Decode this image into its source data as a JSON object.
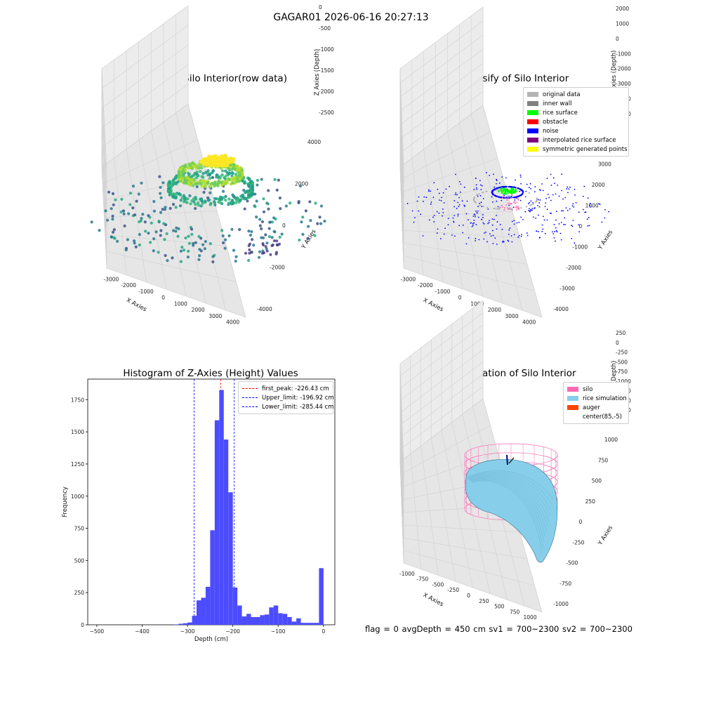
{
  "suptitle": "GAGAR01 2026-06-16 20:27:13",
  "footer": "flag = 0     avgDepth = 450 cm  sv1 = 700~2300  sv2 = 700~2300",
  "chart_data": [
    {
      "type": "scatter",
      "title": "3D Plot of Silo Interior(row data)",
      "xlabel": "X Axies",
      "ylabel": "Y Axies",
      "zlabel": "Z Axies (Depth)",
      "xticks": [
        "-3000",
        "-2000",
        "-1000",
        "0",
        "1000",
        "2000",
        "3000",
        "4000"
      ],
      "yticks": [
        "4000",
        "2000",
        "0",
        "-2000",
        "-4000"
      ],
      "zticks": [
        "0",
        "-500",
        "-1000",
        "-1500",
        "-2000",
        "-2500"
      ],
      "colormap": "viridis",
      "clusters": [
        {
          "desc": "top surface",
          "z_range": [
            -400,
            -100
          ],
          "color": "#fde725"
        },
        {
          "desc": "upper ring",
          "z_range": [
            -1200,
            -600
          ],
          "color": "#7ad151"
        },
        {
          "desc": "mid ring",
          "z_range": [
            -1600,
            -1000
          ],
          "color": "#22a884"
        },
        {
          "desc": "floor scatter",
          "z_range": [
            -2500,
            -1800
          ],
          "color": "#2a788e"
        }
      ]
    },
    {
      "type": "scatter",
      "title": "3D classify of Silo Interior",
      "xlabel": "X Axies",
      "ylabel": "Y Axies",
      "zlabel": "Z Axies (Depth)",
      "xticks": [
        "-3000",
        "-2000",
        "-1000",
        "0",
        "1000",
        "2000",
        "3000",
        "4000"
      ],
      "yticks": [
        "4000",
        "3000",
        "2000",
        "1000",
        "0",
        "-1000",
        "-2000",
        "-3000",
        "-4000"
      ],
      "zticks": [
        "2000",
        "1000",
        "0",
        "-1000",
        "-2000",
        "-3000",
        "-4000",
        "-5000"
      ],
      "zticks_partial": "000",
      "legend": [
        {
          "label": "original data",
          "color": "#b3b3b3"
        },
        {
          "label": "inner wall",
          "color": "#808080"
        },
        {
          "label": "rice surface",
          "color": "#00ff00"
        },
        {
          "label": "obstacle",
          "color": "#ff0000"
        },
        {
          "label": "noise",
          "color": "#0000ff"
        },
        {
          "label": "interpolated rice surface",
          "color": "#800080"
        },
        {
          "label": "symmetric generated points",
          "color": "#ffff00"
        }
      ]
    },
    {
      "type": "bar",
      "title": "Histogram of Z-Axies (Height) Values",
      "xlabel": "Depth (cm)",
      "ylabel": "Frequency",
      "xlim": [
        -520,
        25
      ],
      "ylim": [
        0,
        1910
      ],
      "xticks": [
        -500,
        -400,
        -300,
        -200,
        -100,
        0
      ],
      "yticks": [
        0,
        250,
        500,
        750,
        1000,
        1250,
        1500,
        1750
      ],
      "bin_width": 10,
      "bins": [
        {
          "x": -325,
          "y": 3
        },
        {
          "x": -315,
          "y": 8
        },
        {
          "x": -305,
          "y": 12
        },
        {
          "x": -295,
          "y": 18
        },
        {
          "x": -285,
          "y": 70
        },
        {
          "x": -275,
          "y": 190
        },
        {
          "x": -265,
          "y": 210
        },
        {
          "x": -255,
          "y": 295
        },
        {
          "x": -245,
          "y": 735
        },
        {
          "x": -235,
          "y": 1590
        },
        {
          "x": -225,
          "y": 1825
        },
        {
          "x": -215,
          "y": 1440
        },
        {
          "x": -205,
          "y": 1030
        },
        {
          "x": -195,
          "y": 290
        },
        {
          "x": -185,
          "y": 150
        },
        {
          "x": -175,
          "y": 65
        },
        {
          "x": -165,
          "y": 85
        },
        {
          "x": -155,
          "y": 60
        },
        {
          "x": -145,
          "y": 60
        },
        {
          "x": -135,
          "y": 75
        },
        {
          "x": -125,
          "y": 80
        },
        {
          "x": -115,
          "y": 135
        },
        {
          "x": -105,
          "y": 150
        },
        {
          "x": -95,
          "y": 90
        },
        {
          "x": -85,
          "y": 85
        },
        {
          "x": -75,
          "y": 60
        },
        {
          "x": -65,
          "y": 25
        },
        {
          "x": -55,
          "y": 50
        },
        {
          "x": -45,
          "y": 15
        },
        {
          "x": -35,
          "y": 15
        },
        {
          "x": -25,
          "y": 15
        },
        {
          "x": -15,
          "y": 15
        },
        {
          "x": -5,
          "y": 440
        }
      ],
      "bar_color": "#4c4cff",
      "lines": [
        {
          "label": "first_peak: -226.43 cm",
          "x": -226.43,
          "color": "#ff0000"
        },
        {
          "label": "Upper_limit: -196.92 cm",
          "x": -196.92,
          "color": "#0000ff"
        },
        {
          "label": "Lower_limit: -285.44 cm",
          "x": -285.44,
          "color": "#0000ff"
        }
      ]
    },
    {
      "type": "surface",
      "title": "3D simulation of Silo Interior",
      "xlabel": "X Axies",
      "ylabel": "Y Axies",
      "zlabel": "Z Axies (Depth)",
      "xticks": [
        "-1000",
        "-750",
        "-500",
        "-250",
        "0",
        "250",
        "500",
        "750",
        "1000"
      ],
      "yticks": [
        "1000",
        "750",
        "500",
        "250",
        "0",
        "-250",
        "-500",
        "-750",
        "-1000"
      ],
      "zticks": [
        "250",
        "0",
        "-250",
        "-500",
        "-750",
        "-1000",
        "-1250",
        "-1500",
        "-1750"
      ],
      "legend": [
        {
          "label": "silo",
          "color": "#ff69b4"
        },
        {
          "label": "rice simulation",
          "color": "#87ceeb"
        },
        {
          "label": "auger",
          "color": "#ff4500"
        },
        {
          "label": "center(85,-5)",
          "color": "#ffffff"
        }
      ]
    }
  ]
}
